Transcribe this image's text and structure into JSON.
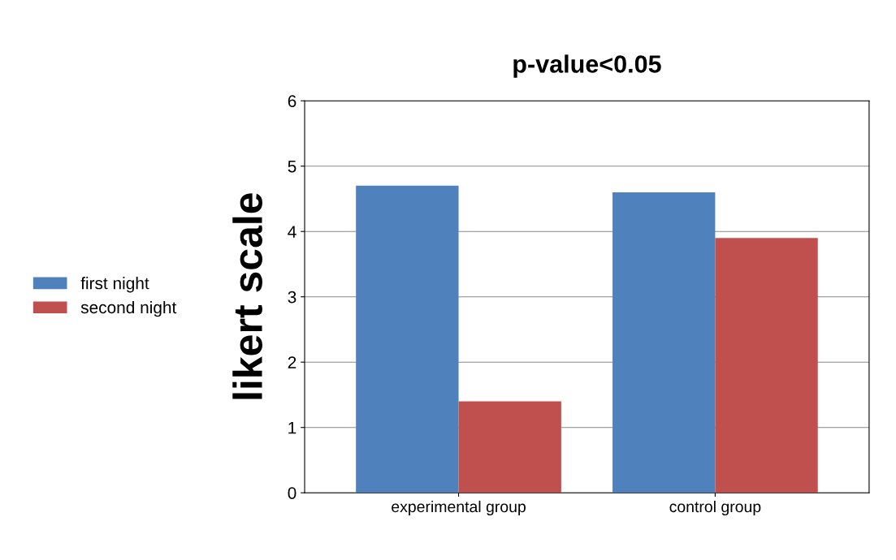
{
  "chart_data": {
    "type": "bar",
    "title": "p-value<0.05",
    "ylabel": "likert scale",
    "categories": [
      "experimental group",
      "control group"
    ],
    "series": [
      {
        "name": "first night",
        "color": "#4f81bd",
        "values": [
          4.7,
          4.6
        ]
      },
      {
        "name": "second night",
        "color": "#c0504d",
        "values": [
          1.4,
          3.9
        ]
      }
    ],
    "ylim": [
      0,
      6
    ],
    "yticks": [
      0,
      1,
      2,
      3,
      4,
      5,
      6
    ],
    "grid": "y",
    "legend": "left"
  }
}
